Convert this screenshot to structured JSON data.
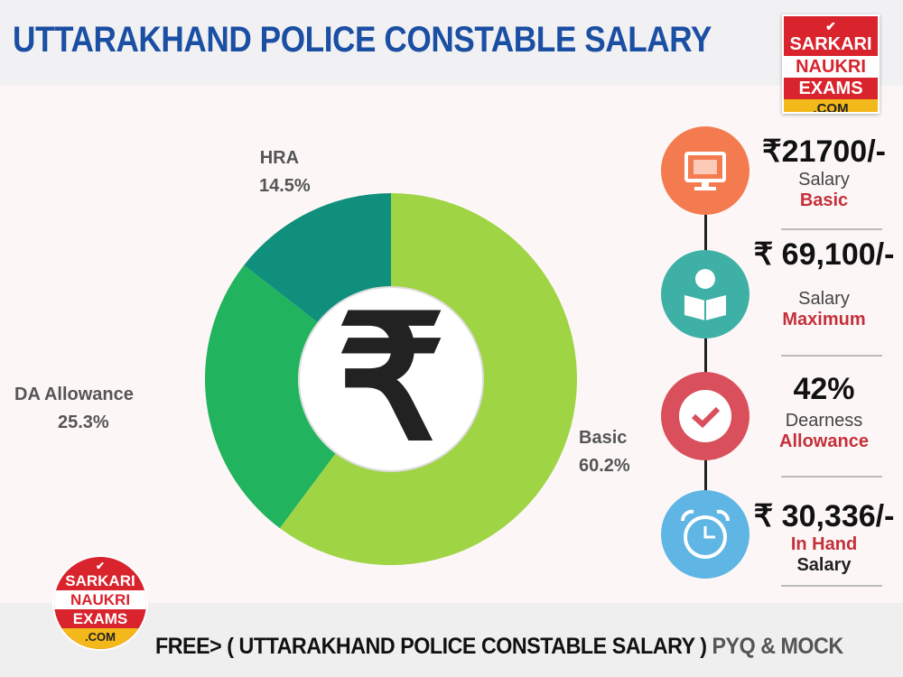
{
  "title": "UTTARAKHAND POLICE CONSTABLE SALARY",
  "logo": {
    "line1": "SARKARI",
    "line2": "NAUKRI",
    "line3": "EXAMS",
    "line4": ".COM"
  },
  "chart_data": {
    "type": "pie",
    "donut": true,
    "categories": [
      "Basic",
      "DA Allowance",
      "HRA"
    ],
    "values": [
      60.2,
      25.3,
      14.5
    ],
    "value_labels": [
      "60.2%",
      "25.3%",
      "14.5%"
    ],
    "colors": [
      "#9fd445",
      "#22b35e",
      "#0f8f7c"
    ],
    "center_symbol": "₹"
  },
  "side": [
    {
      "value": "₹21700/-",
      "line1": "Salary",
      "line2": "Basic",
      "icon": "monitor-icon",
      "color": "#f47b4f"
    },
    {
      "value": "₹ 69,100/-",
      "line1": "Salary",
      "line2": "Maximum",
      "icon": "reader-icon",
      "color": "#3fb0a5"
    },
    {
      "value": "42%",
      "line1": "Dearness",
      "line2": "Allowance",
      "icon": "check-icon",
      "color": "#d9505c"
    },
    {
      "value": "₹ 30,336/-",
      "line1": "In Hand",
      "line2": "Salary",
      "icon": "alarm-clock-icon",
      "color": "#5fb5e3"
    }
  ],
  "footer": {
    "main": "FREE> ( UTTARAKHAND POLICE CONSTABLE SALARY  )",
    "tail": " PYQ & MOCK"
  }
}
